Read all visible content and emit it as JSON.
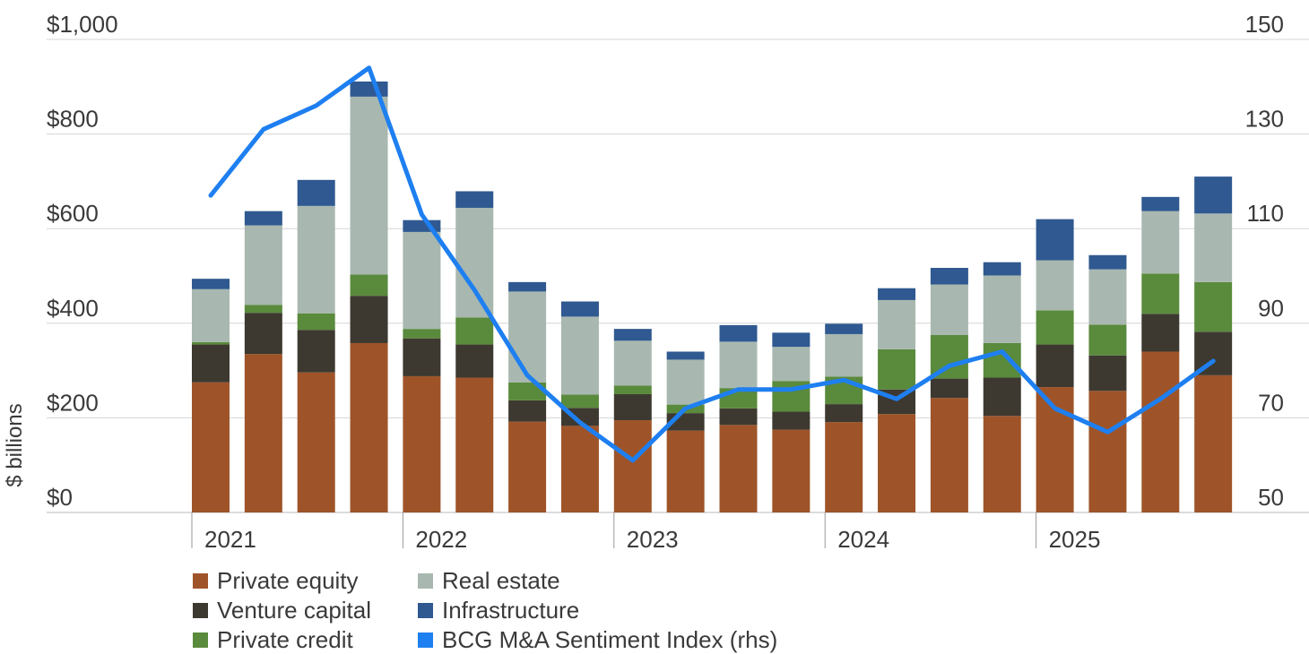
{
  "chart_data": {
    "type": "bar",
    "stacked": true,
    "ylabel": "$ billions",
    "y_left": {
      "min": 0,
      "max": 1000,
      "ticks": [
        "$0",
        "$200",
        "$400",
        "$600",
        "$800",
        "$1,000"
      ],
      "tick_values": [
        0,
        200,
        400,
        600,
        800,
        1000
      ]
    },
    "y_right": {
      "min": 50,
      "max": 150,
      "ticks": [
        "50",
        "70",
        "90",
        "110",
        "130",
        "150"
      ],
      "tick_values": [
        50,
        70,
        90,
        110,
        130,
        150
      ]
    },
    "x_year_labels": [
      "2021",
      "2022",
      "2023",
      "2024",
      "2025"
    ],
    "quarters_per_year": 4,
    "bars_count": 20,
    "grid": true,
    "legend_position": "bottom-left",
    "series": [
      {
        "name": "Private equity",
        "color": "#9e5428",
        "values": [
          275,
          335,
          296,
          358,
          288,
          285,
          192,
          183,
          195,
          173,
          185,
          175,
          191,
          208,
          242,
          204,
          265,
          257,
          340,
          290
        ]
      },
      {
        "name": "Venture capital",
        "color": "#3d3930",
        "values": [
          80,
          87,
          90,
          100,
          80,
          70,
          45,
          38,
          55,
          37,
          35,
          38,
          38,
          52,
          41,
          81,
          90,
          75,
          80,
          92
        ]
      },
      {
        "name": "Private credit",
        "color": "#5a8a3c",
        "values": [
          5,
          17,
          35,
          45,
          20,
          57,
          38,
          28,
          18,
          18,
          43,
          65,
          58,
          85,
          92,
          73,
          72,
          65,
          85,
          105
        ]
      },
      {
        "name": "Real estate",
        "color": "#a8b8b0",
        "values": [
          112,
          168,
          227,
          376,
          205,
          232,
          192,
          165,
          95,
          95,
          98,
          72,
          90,
          104,
          107,
          143,
          106,
          117,
          132,
          145
        ]
      },
      {
        "name": "Infrastructure",
        "color": "#2f5990",
        "values": [
          22,
          30,
          55,
          32,
          25,
          35,
          20,
          32,
          25,
          17,
          35,
          30,
          22,
          25,
          35,
          28,
          87,
          30,
          30,
          78
        ]
      }
    ],
    "line_series": {
      "name": "BCG M&A Sentiment Index (rhs)",
      "color": "#1e7ff0",
      "axis": "right",
      "values": [
        117,
        131,
        136,
        144,
        113,
        97,
        79,
        69,
        61,
        72,
        76,
        76,
        78,
        74,
        81,
        84,
        72,
        67,
        74,
        82
      ]
    }
  }
}
